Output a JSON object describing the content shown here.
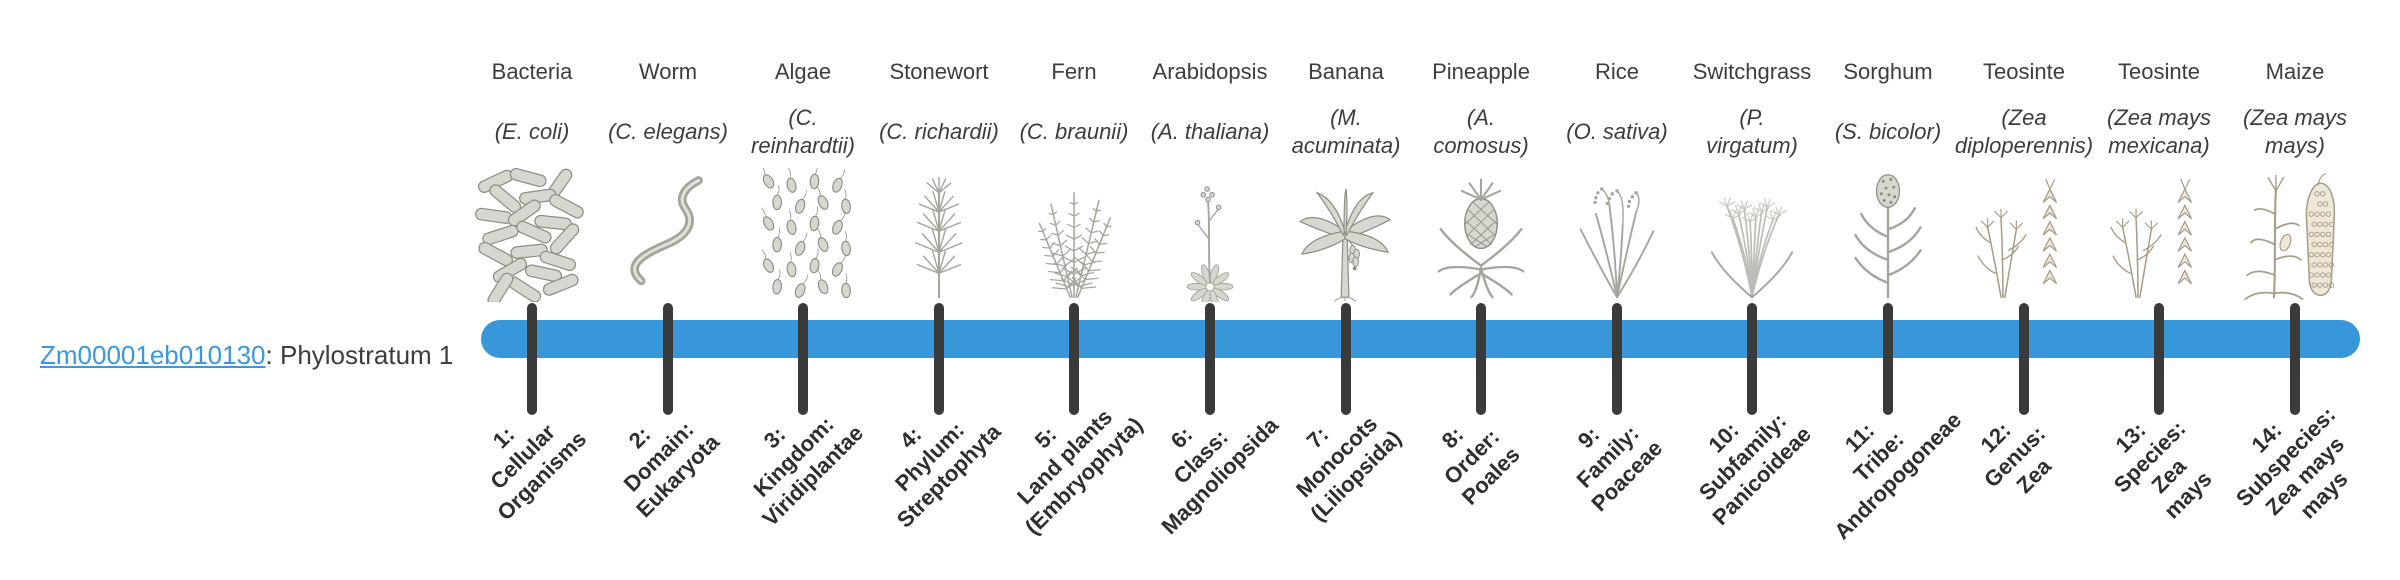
{
  "colors": {
    "accent_blue": "#3897d8",
    "link_blue": "#3a97e0",
    "tick_dark": "#3a3a3a",
    "text_dark": "#3d3d3d",
    "illustration_gray": "#a6a59d",
    "illustration_warm": "#a89d88"
  },
  "gene": {
    "id": "Zm00001eb010130",
    "suffix": ": Phylostratum 1",
    "phylostratum": "Phylostratum 1"
  },
  "organisms": [
    {
      "name": "Bacteria",
      "sci": "(E. coli)",
      "icon": "bacteria"
    },
    {
      "name": "Worm",
      "sci": "(C. elegans)",
      "icon": "worm"
    },
    {
      "name": "Algae",
      "sci": "(C.\nreinhardtii)",
      "icon": "algae"
    },
    {
      "name": "Stonewort",
      "sci": "(C. richardii)",
      "icon": "stonewort"
    },
    {
      "name": "Fern",
      "sci": "(C. braunii)",
      "icon": "fern"
    },
    {
      "name": "Arabidopsis",
      "sci": "(A. thaliana)",
      "icon": "arabidopsis"
    },
    {
      "name": "Banana",
      "sci": "(M.\nacuminata)",
      "icon": "banana"
    },
    {
      "name": "Pineapple",
      "sci": "(A.\ncomosus)",
      "icon": "pineapple"
    },
    {
      "name": "Rice",
      "sci": "(O. sativa)",
      "icon": "rice"
    },
    {
      "name": "Switchgrass",
      "sci": "(P.\nvirgatum)",
      "icon": "switchgrass"
    },
    {
      "name": "Sorghum",
      "sci": "(S. bicolor)",
      "icon": "sorghum"
    },
    {
      "name": "Teosinte",
      "sci": "(Zea\ndiploperennis)",
      "icon": "teosinte"
    },
    {
      "name": "Teosinte",
      "sci": "(Zea mays\nmexicana)",
      "icon": "teosinte"
    },
    {
      "name": "Maize",
      "sci": "(Zea mays\nmays)",
      "icon": "maize"
    }
  ],
  "strata": [
    {
      "num": 1,
      "label": "1:\nCellular\nOrganisms"
    },
    {
      "num": 2,
      "label": "2:\nDomain:\nEukaryota"
    },
    {
      "num": 3,
      "label": "3:\nKingdom:\nViridiplantae"
    },
    {
      "num": 4,
      "label": "4:\nPhylum:\nStreptophyta"
    },
    {
      "num": 5,
      "label": "5:\nLand plants\n(Embryophyta)"
    },
    {
      "num": 6,
      "label": "6:\nClass:\nMagnoliopsida"
    },
    {
      "num": 7,
      "label": "7:\nMonocots\n(Liliopsida)"
    },
    {
      "num": 8,
      "label": "8:\nOrder:\nPoales"
    },
    {
      "num": 9,
      "label": "9:\nFamily:\nPoaceae"
    },
    {
      "num": 10,
      "label": "10:\nSubfamily:\nPanicoideae"
    },
    {
      "num": 11,
      "label": "11:\nTribe:\nAndropogoneae"
    },
    {
      "num": 12,
      "label": "12:\nGenus:\nZea"
    },
    {
      "num": 13,
      "label": "13:\nSpecies:\nZea\nmays"
    },
    {
      "num": 14,
      "label": "14:\nSubspecies:\nZea mays\nmays"
    }
  ]
}
